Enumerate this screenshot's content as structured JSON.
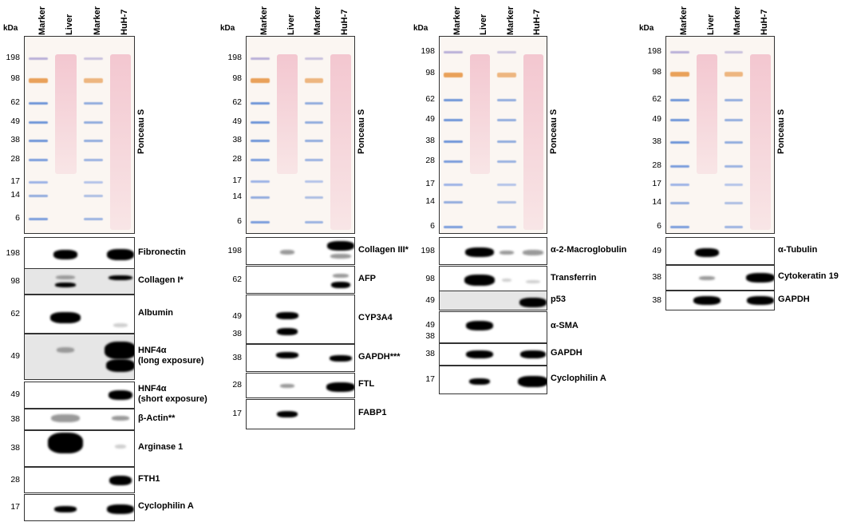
{
  "units_label": "kDa",
  "lanes": [
    "Marker",
    "Liver",
    "Marker",
    "HuH-7"
  ],
  "ponceau_label": "Ponceau S",
  "marker_sizes": [
    "198",
    "98",
    "62",
    "49",
    "38",
    "28",
    "17",
    "14",
    "6"
  ],
  "panels": [
    {
      "blots": [
        {
          "label": "Fibronectin",
          "mw": "198"
        },
        {
          "label": "Collagen I*",
          "mw": "98"
        },
        {
          "label": "Albumin",
          "mw": "62"
        },
        {
          "label": "HNF4α",
          "label2": "(long exposure)",
          "mw": "49"
        },
        {
          "label": "HNF4α",
          "label2": "(short exposure)",
          "mw": "49"
        },
        {
          "label": "β-Actin**",
          "mw": "38"
        },
        {
          "label": "Arginase 1",
          "mw": "38"
        },
        {
          "label": "FTH1",
          "mw": "28"
        },
        {
          "label": "Cyclophilin A",
          "mw": "17"
        }
      ]
    },
    {
      "blots": [
        {
          "label": "Collagen III*",
          "mw": "198"
        },
        {
          "label": "AFP",
          "mw": "62"
        },
        {
          "label": "CYP3A4",
          "mw": "49",
          "mw2": "38"
        },
        {
          "label": "GAPDH***",
          "mw": "38"
        },
        {
          "label": "FTL",
          "mw": "28"
        },
        {
          "label": "FABP1",
          "mw": "17"
        }
      ]
    },
    {
      "blots": [
        {
          "label": "α-2-Macroglobulin",
          "mw": "198"
        },
        {
          "label": "Transferrin",
          "mw": "98"
        },
        {
          "label": "p53",
          "mw": "49"
        },
        {
          "label": "α-SMA",
          "mw": "49",
          "mw2": "38"
        },
        {
          "label": "GAPDH",
          "mw": "38"
        },
        {
          "label": "Cyclophilin A",
          "mw": "17"
        }
      ]
    },
    {
      "blots": [
        {
          "label": "α-Tubulin",
          "mw": "49"
        },
        {
          "label": "Cytokeratin 19",
          "mw": "38"
        },
        {
          "label": "GAPDH",
          "mw": "38"
        }
      ]
    }
  ]
}
